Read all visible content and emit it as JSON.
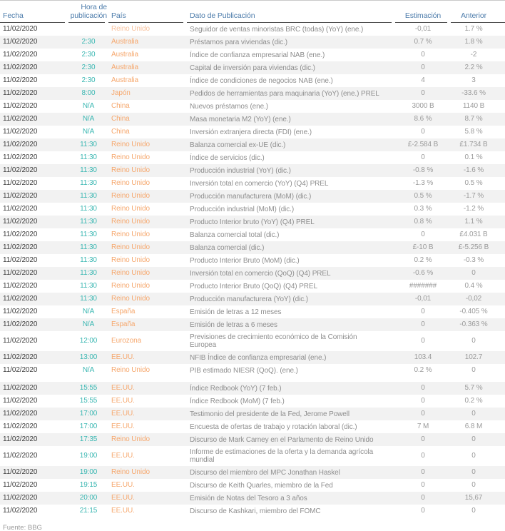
{
  "header": {
    "fecha": "Fecha",
    "hora": "Hora de publicación",
    "pais": "País",
    "dato": "Dato de Publicación",
    "estimacion": "Estimación",
    "anterior": "Anterior"
  },
  "rows": [
    {
      "fecha": "11/02/2020",
      "hora": "",
      "pais": "Reino Unido",
      "dato": "Seguidor de ventas minoristas BRC (todas) (YoY) (ene.)",
      "estimacion": "-0,01",
      "anterior": "1.7 %"
    },
    {
      "fecha": "11/02/2020",
      "hora": "2:30",
      "pais": "Australia",
      "dato": "Préstamos para viviendas (dic.)",
      "estimacion": "0.7 %",
      "anterior": "1.8 %"
    },
    {
      "fecha": "11/02/2020",
      "hora": "2:30",
      "pais": "Australia",
      "dato": "Índice de confianza empresarial NAB (ene.)",
      "estimacion": "0",
      "anterior": "-2"
    },
    {
      "fecha": "11/02/2020",
      "hora": "2:30",
      "pais": "Australia",
      "dato": "Capital de inversión para viviendas (dic.)",
      "estimacion": "0",
      "anterior": "2.2 %"
    },
    {
      "fecha": "11/02/2020",
      "hora": "2:30",
      "pais": "Australia",
      "dato": "Índice de condiciones de negocios NAB (ene.)",
      "estimacion": "4",
      "anterior": "3"
    },
    {
      "fecha": "11/02/2020",
      "hora": "8:00",
      "pais": "Japón",
      "dato": "Pedidos de herramientas para maquinaria (YoY) (ene.) PREL",
      "estimacion": "0",
      "anterior": "-33.6 %"
    },
    {
      "fecha": "11/02/2020",
      "hora": "N/A",
      "pais": "China",
      "dato": "Nuevos préstamos (ene.)",
      "estimacion": "3000 B",
      "anterior": "1140 B"
    },
    {
      "fecha": "11/02/2020",
      "hora": "N/A",
      "pais": "China",
      "dato": "Masa monetaria M2 (YoY) (ene.)",
      "estimacion": "8.6 %",
      "anterior": "8.7 %"
    },
    {
      "fecha": "11/02/2020",
      "hora": "N/A",
      "pais": "China",
      "dato": "Inversión extranjera directa (FDI) (ene.)",
      "estimacion": "0",
      "anterior": "5.8 %"
    },
    {
      "fecha": "11/02/2020",
      "hora": "11:30",
      "pais": "Reino Unido",
      "dato": "Balanza comercial ex-UE (dic.)",
      "estimacion": "£-2.584 B",
      "anterior": "£1.734 B"
    },
    {
      "fecha": "11/02/2020",
      "hora": "11:30",
      "pais": "Reino Unido",
      "dato": "Índice de servicios (dic.)",
      "estimacion": "0",
      "anterior": "0.1 %"
    },
    {
      "fecha": "11/02/2020",
      "hora": "11:30",
      "pais": "Reino Unido",
      "dato": "Producción industrial (YoY) (dic.)",
      "estimacion": "-0.8 %",
      "anterior": "-1.6 %"
    },
    {
      "fecha": "11/02/2020",
      "hora": "11:30",
      "pais": "Reino Unido",
      "dato": "Inversión total en comercio (YoY) (Q4) PREL",
      "estimacion": "-1.3 %",
      "anterior": "0.5 %"
    },
    {
      "fecha": "11/02/2020",
      "hora": "11:30",
      "pais": "Reino Unido",
      "dato": "Producción manufacturera (MoM) (dic.)",
      "estimacion": "0.5 %",
      "anterior": "-1.7 %"
    },
    {
      "fecha": "11/02/2020",
      "hora": "11:30",
      "pais": "Reino Unido",
      "dato": "Producción industrial (MoM) (dic.)",
      "estimacion": "0.3 %",
      "anterior": "-1.2 %"
    },
    {
      "fecha": "11/02/2020",
      "hora": "11:30",
      "pais": "Reino Unido",
      "dato": "Producto Interior bruto (YoY) (Q4) PREL",
      "estimacion": "0.8 %",
      "anterior": "1.1 %"
    },
    {
      "fecha": "11/02/2020",
      "hora": "11:30",
      "pais": "Reino Unido",
      "dato": "Balanza comercial total (dic.)",
      "estimacion": "0",
      "anterior": "£4.031 B"
    },
    {
      "fecha": "11/02/2020",
      "hora": "11:30",
      "pais": "Reino Unido",
      "dato": "Balanza comercial (dic.)",
      "estimacion": "£-10 B",
      "anterior": "£-5.256 B"
    },
    {
      "fecha": "11/02/2020",
      "hora": "11:30",
      "pais": "Reino Unido",
      "dato": "Producto Interior Bruto (MoM) (dic.)",
      "estimacion": "0.2 %",
      "anterior": "-0.3 %"
    },
    {
      "fecha": "11/02/2020",
      "hora": "11:30",
      "pais": "Reino Unido",
      "dato": "Inversión total en comercio (QoQ) (Q4) PREL",
      "estimacion": "-0.6 %",
      "anterior": "0"
    },
    {
      "fecha": "11/02/2020",
      "hora": "11:30",
      "pais": "Reino Unido",
      "dato": "Producto Interior Bruto (QoQ) (Q4) PREL",
      "estimacion": "#######",
      "anterior": "0.4 %"
    },
    {
      "fecha": "11/02/2020",
      "hora": "11:30",
      "pais": "Reino Unido",
      "dato": "Producción manufacturera (YoY) (dic.)",
      "estimacion": "-0,01",
      "anterior": "-0,02"
    },
    {
      "fecha": "11/02/2020",
      "hora": "N/A",
      "pais": "España",
      "dato": "Emisión de letras a 12 meses",
      "estimacion": "0",
      "anterior": "-0.405 %"
    },
    {
      "fecha": "11/02/2020",
      "hora": "N/A",
      "pais": "España",
      "dato": "Emisión de letras a 6 meses",
      "estimacion": "0",
      "anterior": "-0.363 %"
    },
    {
      "fecha": "11/02/2020",
      "hora": "12:00",
      "pais": "Eurozona",
      "dato": "Previsiones de crecimiento económico de la Comisión\nEuropea",
      "estimacion": "0",
      "anterior": "0"
    },
    {
      "fecha": "11/02/2020",
      "hora": "13:00",
      "pais": "EE.UU.",
      "dato": "NFIB Índice de confianza empresarial (ene.)",
      "estimacion": "103.4",
      "anterior": "102.7"
    },
    {
      "fecha": "11/02/2020",
      "hora": "N/A",
      "pais": "Reino Unido",
      "dato": "PIB estimado NIESR (QoQ). (ene.)",
      "estimacion": "0.2 %",
      "anterior": "0"
    },
    {
      "fecha": "11/02/2020",
      "hora": "15:55",
      "pais": "EE.UU.",
      "dato": "Índice Redbook (YoY) (7 feb.)",
      "estimacion": "0",
      "anterior": "5.7 %"
    },
    {
      "fecha": "11/02/2020",
      "hora": "15:55",
      "pais": "EE.UU.",
      "dato": "Índice Redbook (MoM) (7 feb.)",
      "estimacion": "0",
      "anterior": "0.2 %"
    },
    {
      "fecha": "11/02/2020",
      "hora": "17:00",
      "pais": "EE.UU.",
      "dato": "Testimonio del presidente de la Fed, Jerome Powell",
      "estimacion": "0",
      "anterior": "0"
    },
    {
      "fecha": "11/02/2020",
      "hora": "17:00",
      "pais": "EE.UU.",
      "dato": "Encuesta de ofertas de trabajo y rotación laboral (dic.)",
      "estimacion": "7 M",
      "anterior": "6.8 M"
    },
    {
      "fecha": "11/02/2020",
      "hora": "17:35",
      "pais": "Reino Unido",
      "dato": "Discurso de Mark Carney en el Parlamento de Reino Unido",
      "estimacion": "0",
      "anterior": "0"
    },
    {
      "fecha": "11/02/2020",
      "hora": "19:00",
      "pais": "EE.UU.",
      "dato": "Informe de estimaciones de la oferta y la demanda agrícola\nmundial",
      "estimacion": "0",
      "anterior": "0"
    },
    {
      "fecha": "11/02/2020",
      "hora": "19:00",
      "pais": "Reino Unido",
      "dato": "Discurso del miembro del MPC Jonathan Haskel",
      "estimacion": "0",
      "anterior": "0"
    },
    {
      "fecha": "11/02/2020",
      "hora": "19:15",
      "pais": "EE.UU.",
      "dato": "Discurso de Keith Quarles, miembro de la Fed",
      "estimacion": "0",
      "anterior": "0"
    },
    {
      "fecha": "11/02/2020",
      "hora": "20:00",
      "pais": "EE.UU.",
      "dato": "Emisión de Notas del Tesoro a 3 años",
      "estimacion": "0",
      "anterior": "15,67"
    },
    {
      "fecha": "11/02/2020",
      "hora": "21:15",
      "pais": "EE.UU.",
      "dato": "Discurso de Kashkari, miembro del FOMC",
      "estimacion": "0",
      "anterior": "0"
    }
  ],
  "footer": {
    "source": "Fuente: BBG"
  },
  "colors": {
    "header_text": "#4d7cab",
    "time_accent": "#3ab7b2",
    "country_accent": "#f6a86e",
    "country_accent_light": "#f8c29e",
    "date_text": "#3d3d3d",
    "event_text": "#8e8e8e",
    "value_text": "#9a9a9a",
    "row_alt_bg": "#f2f2f2",
    "header_rule": "#4c4c4c",
    "top_rule": "#c9c9c9"
  }
}
